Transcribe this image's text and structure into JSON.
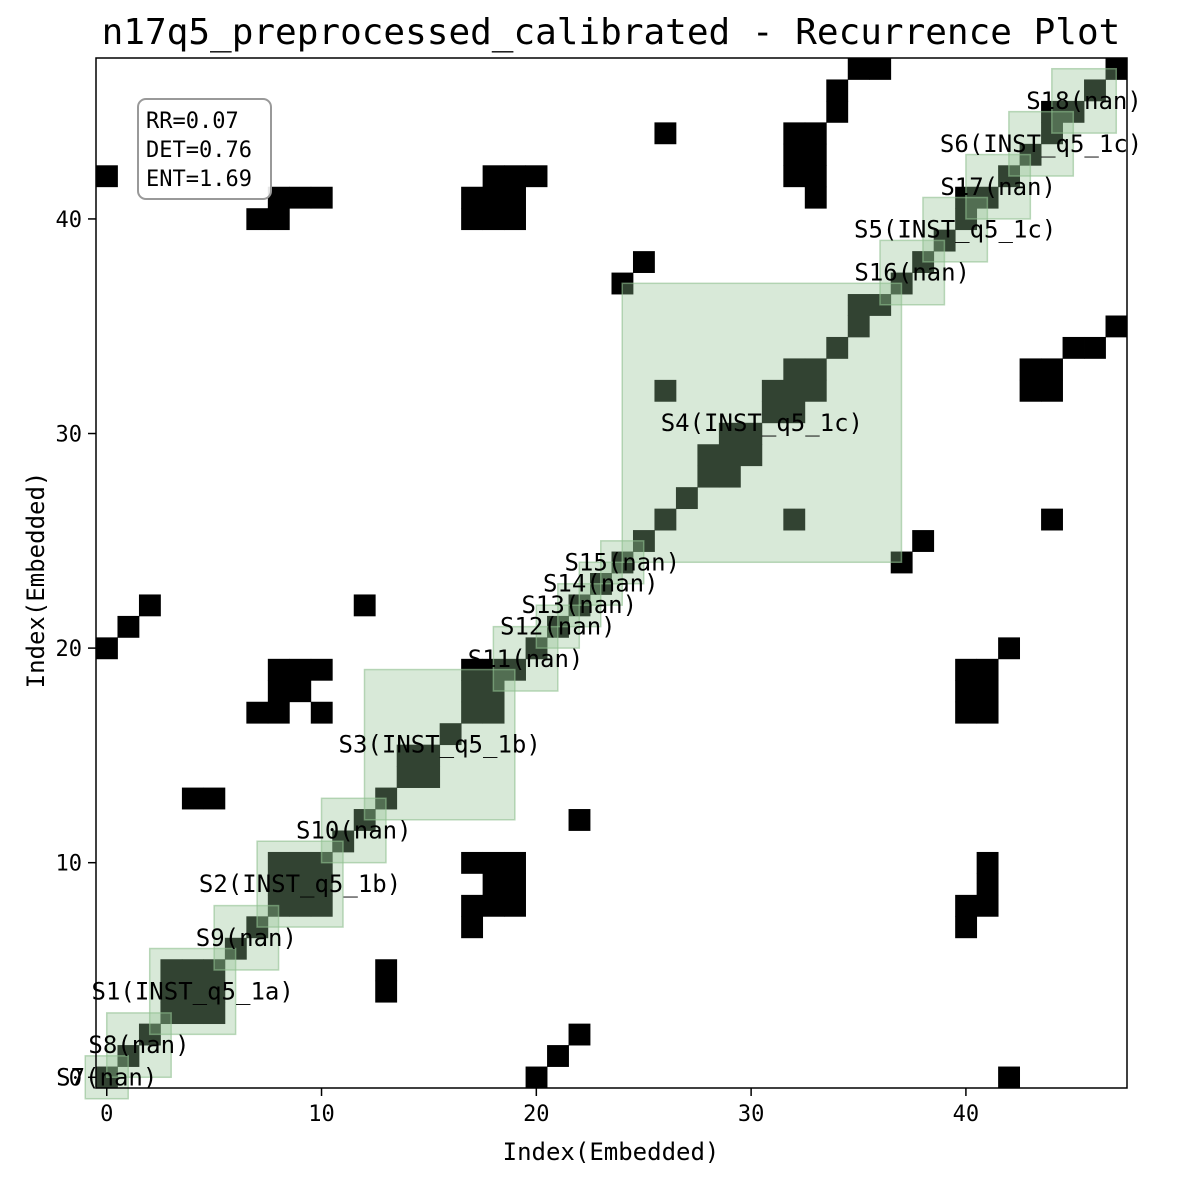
{
  "chart_data": {
    "type": "heatmap",
    "title": "n17q5_preprocessed_calibrated - Recurrence Plot",
    "xlabel": "Index(Embedded)",
    "ylabel": "Index(Embedded)",
    "n": 48,
    "xlim": [
      -0.5,
      47.5
    ],
    "ylim": [
      -0.5,
      47.5
    ],
    "xticks": [
      0,
      10,
      20,
      30,
      40
    ],
    "yticks": [
      0,
      10,
      20,
      30,
      40
    ],
    "cell_color": "#000000",
    "segment_fill": "#8fbf8f",
    "stats": {
      "rr": "RR=0.07",
      "det": "DET=0.76",
      "ent": "ENT=1.69"
    },
    "segments": [
      {
        "label": "S7(nan)",
        "start": 0,
        "end": 0
      },
      {
        "label": "S8(nan)",
        "start": 1,
        "end": 2
      },
      {
        "label": "S1(INST_q5_1a)",
        "start": 3,
        "end": 5
      },
      {
        "label": "S9(nan)",
        "start": 6,
        "end": 7
      },
      {
        "label": "S2(INST_q5_1b)",
        "start": 8,
        "end": 10
      },
      {
        "label": "S10(nan)",
        "start": 11,
        "end": 12
      },
      {
        "label": "S3(INST_q5_1b)",
        "start": 13,
        "end": 18
      },
      {
        "label": "S11(nan)",
        "start": 19,
        "end": 20
      },
      {
        "label": "S12(nan)",
        "start": 21,
        "end": 21
      },
      {
        "label": "S13(nan)",
        "start": 22,
        "end": 22
      },
      {
        "label": "S14(nan)",
        "start": 23,
        "end": 23
      },
      {
        "label": "S15(nan)",
        "start": 24,
        "end": 24
      },
      {
        "label": "S4(INST_q5_1c)",
        "start": 25,
        "end": 36
      },
      {
        "label": "S16(nan)",
        "start": 37,
        "end": 38
      },
      {
        "label": "S5(INST_q5_1c)",
        "start": 39,
        "end": 40
      },
      {
        "label": "S17(nan)",
        "start": 41,
        "end": 42
      },
      {
        "label": "S6(INST_q5_1c)",
        "start": 43,
        "end": 44
      },
      {
        "label": "S18(nan)",
        "start": 45,
        "end": 46
      }
    ],
    "blocks": [
      [
        3,
        5,
        3,
        5
      ],
      [
        8,
        10,
        8,
        10
      ],
      [
        14,
        15,
        14,
        15
      ],
      [
        17,
        18,
        17,
        19
      ],
      [
        28,
        29,
        28,
        29
      ],
      [
        29,
        30,
        29,
        30
      ],
      [
        31,
        32,
        31,
        32
      ],
      [
        32,
        33,
        32,
        33
      ],
      [
        40,
        40,
        40,
        41
      ],
      [
        44,
        44,
        44,
        45
      ]
    ],
    "off_diagonal": [
      [
        0,
        42
      ],
      [
        0,
        20
      ],
      [
        1,
        21
      ],
      [
        2,
        22
      ],
      [
        7,
        40
      ],
      [
        8,
        40
      ],
      [
        8,
        41
      ],
      [
        9,
        41
      ],
      [
        10,
        41
      ],
      [
        17,
        40
      ],
      [
        17,
        41
      ],
      [
        18,
        40
      ],
      [
        18,
        41
      ],
      [
        18,
        42
      ],
      [
        19,
        40
      ],
      [
        19,
        41
      ],
      [
        19,
        42
      ],
      [
        20,
        42
      ],
      [
        12,
        22
      ],
      [
        8,
        17
      ],
      [
        8,
        18
      ],
      [
        8,
        19
      ],
      [
        9,
        18
      ],
      [
        9,
        19
      ],
      [
        10,
        19
      ],
      [
        10,
        17
      ],
      [
        7,
        17
      ],
      [
        4,
        13
      ],
      [
        5,
        13
      ],
      [
        13,
        4
      ],
      [
        13,
        5
      ],
      [
        17,
        10
      ],
      [
        18,
        10
      ],
      [
        19,
        10
      ],
      [
        18,
        9
      ],
      [
        19,
        9
      ],
      [
        18,
        8
      ],
      [
        19,
        8
      ],
      [
        17,
        8
      ],
      [
        17,
        7
      ],
      [
        22,
        12
      ],
      [
        22,
        2
      ],
      [
        21,
        1
      ],
      [
        20,
        0
      ],
      [
        42,
        0
      ],
      [
        24,
        37
      ],
      [
        25,
        38
      ],
      [
        26,
        32
      ],
      [
        32,
        26
      ],
      [
        26,
        44
      ],
      [
        32,
        44
      ],
      [
        32,
        43
      ],
      [
        32,
        42
      ],
      [
        33,
        44
      ],
      [
        33,
        43
      ],
      [
        33,
        42
      ],
      [
        33,
        41
      ],
      [
        34,
        45
      ],
      [
        34,
        46
      ],
      [
        35,
        47
      ],
      [
        35,
        36
      ],
      [
        36,
        47
      ],
      [
        37,
        24
      ],
      [
        38,
        25
      ],
      [
        40,
        17
      ],
      [
        40,
        18
      ],
      [
        40,
        19
      ],
      [
        41,
        17
      ],
      [
        41,
        18
      ],
      [
        41,
        19
      ],
      [
        42,
        20
      ],
      [
        40,
        7
      ],
      [
        40,
        8
      ],
      [
        41,
        8
      ],
      [
        41,
        9
      ],
      [
        41,
        10
      ],
      [
        44,
        26
      ],
      [
        44,
        32
      ],
      [
        44,
        33
      ],
      [
        43,
        32
      ],
      [
        43,
        33
      ],
      [
        45,
        34
      ],
      [
        46,
        34
      ],
      [
        47,
        35
      ]
    ]
  }
}
